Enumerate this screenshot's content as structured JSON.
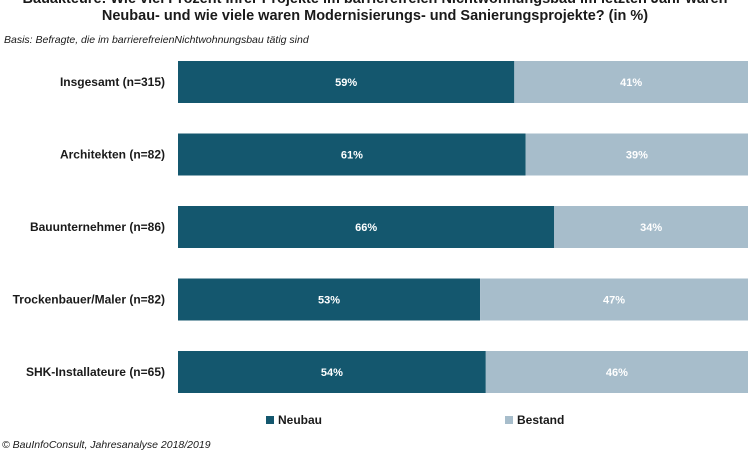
{
  "title_line1": "Bauakteure: Wie viel Prozent Ihrer Projekte im barrierefreien Nichtwohnungsbau im letzten Jahr waren",
  "title_line2": "Neubau- und wie viele waren Modernisierungs- und Sanierungsprojekte? (in %)",
  "subtitle": "Basis: Befragte, die im barrierefreienNichtwohnungsbau tätig sind",
  "source": "© BauInfoConsult, Jahresanalyse 2018/2019",
  "colors": {
    "neubau": "#14576e",
    "bestand": "#a7bdcb"
  },
  "chart_data": {
    "type": "bar",
    "orientation": "horizontal",
    "stacked": true,
    "categories": [
      "Insgesamt (n=315)",
      "Architekten (n=82)",
      "Bauunternehmer (n=86)",
      "Trockenbauer/Maler (n=82)",
      "SHK-Installateure (n=65)"
    ],
    "series": [
      {
        "name": "Neubau",
        "values": [
          59,
          61,
          66,
          53,
          54
        ],
        "labels": [
          "59%",
          "61%",
          "66%",
          "53%",
          "54%"
        ]
      },
      {
        "name": "Bestand",
        "values": [
          41,
          39,
          34,
          47,
          46
        ],
        "labels": [
          "41%",
          "39%",
          "34%",
          "47%",
          "46%"
        ]
      }
    ],
    "xlim": [
      0,
      100
    ],
    "legend_position": "bottom",
    "grid": false
  }
}
